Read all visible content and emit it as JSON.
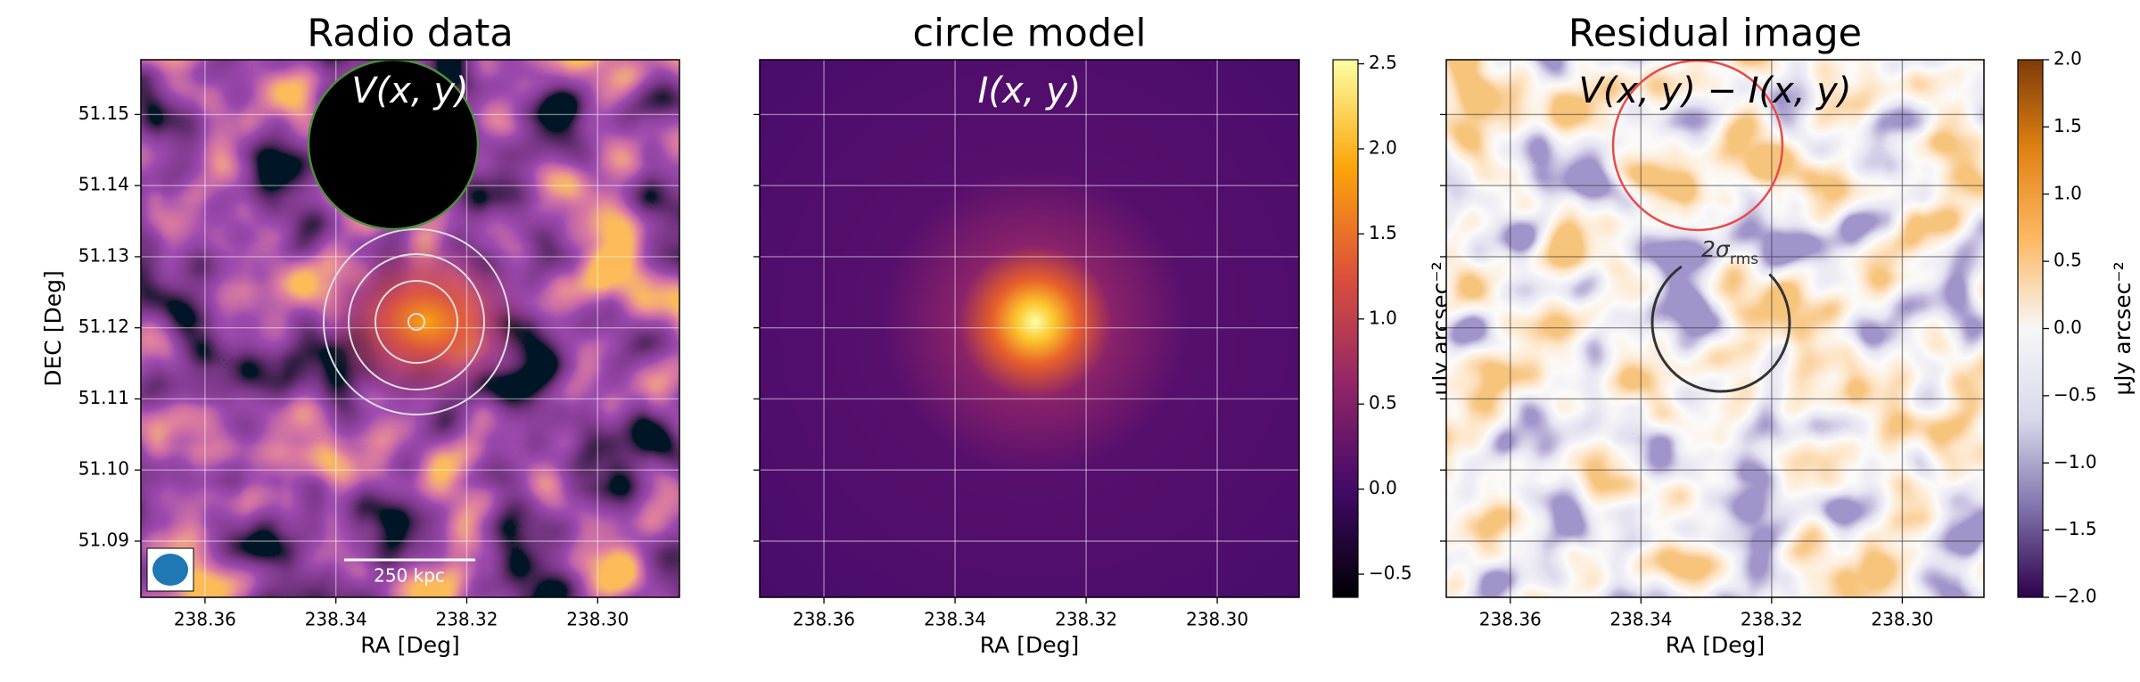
{
  "chart_data": [
    {
      "type": "image",
      "cmap": "inferno",
      "title": "Radio data",
      "annotation": "V(x, y)",
      "xlabel": "RA [Deg]",
      "ylabel": "DEC [Deg]",
      "grid": true,
      "xlim": [
        238.3698,
        238.2875
      ],
      "xticks": [
        238.36,
        238.34,
        238.32,
        {
          "value": 238.3,
          "label": "238.30"
        }
      ],
      "ylim": [
        51.0821,
        51.1577
      ],
      "yticks": [
        51.09,
        {
          "value": 51.1,
          "label": "51.10"
        },
        51.11,
        51.12,
        51.13,
        51.14,
        51.15
      ],
      "scalebar_label": "250 kpc"
    },
    {
      "type": "image",
      "cmap": "inferno",
      "title": "circle model",
      "annotation": "I(x, y)",
      "xlabel": "RA [Deg]",
      "grid": true,
      "sharey": true,
      "xlim": [
        238.3698,
        238.2875
      ],
      "xticks": [
        238.36,
        238.34,
        238.32,
        {
          "value": 238.3,
          "label": "238.30"
        }
      ],
      "colorbar": {
        "cmap": "inferno",
        "label": "μJy arcsec⁻²",
        "lim": [
          -0.636,
          2.524
        ],
        "ticks": [
          2.5,
          {
            "value": 2,
            "label": "2.0"
          },
          1.5,
          {
            "value": 1,
            "label": "1.0"
          },
          0.5,
          {
            "value": 0,
            "label": "0.0"
          },
          {
            "value": -0.5,
            "label": "−0.5"
          }
        ]
      }
    },
    {
      "type": "image",
      "cmap": "PuOr",
      "title": "Residual image",
      "annotation": "V(x, y) − I(x, y)",
      "circle_label": "2σ",
      "circle_label_sub": "rms",
      "xlabel": "RA [Deg]",
      "grid": true,
      "sharey": true,
      "xlim": [
        238.3698,
        238.2875
      ],
      "xticks": [
        238.36,
        238.34,
        238.32,
        {
          "value": 238.3,
          "label": "238.30"
        }
      ],
      "colorbar": {
        "cmap": "PuOr",
        "label": "μJy arcsec⁻²",
        "lim": [
          -2,
          2
        ],
        "ticks": [
          {
            "value": 2,
            "label": "2.0"
          },
          1.5,
          {
            "value": 1,
            "label": "1.0"
          },
          0.5,
          {
            "value": 0,
            "label": "0.0"
          },
          {
            "value": -0.5,
            "label": "−0.5"
          },
          {
            "value": -1,
            "label": "−1.0"
          },
          {
            "value": -1.5,
            "label": "−1.5"
          },
          {
            "value": -2,
            "label": "−2.0"
          }
        ]
      }
    }
  ]
}
